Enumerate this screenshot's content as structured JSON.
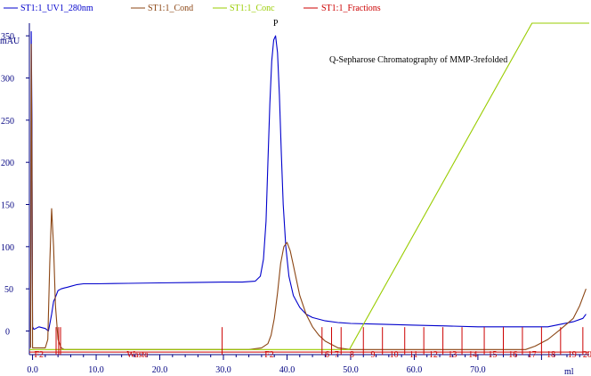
{
  "chart_data": {
    "type": "line",
    "title": "Q-Sepharose Chromatography of MMP-3refolded",
    "ylabel": "mAU",
    "xlabel": "ml",
    "xlim": [
      -0.5,
      87.5
    ],
    "ylim": [
      -28,
      365
    ],
    "x_ticks": [
      0.0,
      10.0,
      20.0,
      30.0,
      40.0,
      50.0,
      60.0,
      70.0
    ],
    "x_tick_labels": [
      "0.0",
      "10.0",
      "20.0",
      "30.0",
      "40.0",
      "50.0",
      "60.0",
      "70.0"
    ],
    "y_ticks": [
      0,
      50,
      100,
      150,
      200,
      250,
      300,
      350
    ],
    "y_tick_labels": [
      "0",
      "50",
      "100",
      "150",
      "200",
      "250",
      "300",
      "350"
    ],
    "legend": [
      {
        "name": "ST1:1_UV1_280nm",
        "color": "#0000cc"
      },
      {
        "name": "ST1:1_Cond",
        "color": "#8b4513"
      },
      {
        "name": "ST1:1_Conc",
        "color": "#99cc00"
      },
      {
        "name": "ST1:1_Fractions",
        "color": "#cc0000"
      }
    ],
    "peak_label": {
      "text": "P",
      "x": 38.2,
      "y": 362
    },
    "series": [
      {
        "name": "ST1:1_UV1_280nm",
        "color": "#0000cc",
        "x": [
          -0.3,
          -0.2,
          -0.1,
          0.0,
          0.2,
          0.5,
          1.0,
          2.0,
          2.5,
          2.8,
          3.0,
          3.3,
          3.6,
          4.0,
          4.5,
          5.0,
          5.5,
          6.0,
          7.0,
          8.0,
          10.0,
          15.0,
          20.0,
          25.0,
          30.0,
          33.0,
          35.0,
          35.8,
          36.3,
          36.7,
          37.0,
          37.3,
          37.6,
          37.9,
          38.2,
          38.5,
          38.8,
          39.1,
          39.4,
          39.8,
          40.3,
          41.0,
          42.0,
          43.0,
          44.0,
          46.0,
          48.0,
          50.0,
          55.0,
          60.0,
          65.0,
          70.0,
          75.0,
          79.0,
          81.0,
          83.0,
          85.0,
          86.5,
          87.0
        ],
        "y": [
          0,
          355,
          250,
          5,
          2,
          3,
          5,
          3,
          0,
          12,
          20,
          35,
          40,
          48,
          50,
          51,
          52,
          53,
          55,
          56,
          56,
          56.5,
          57,
          57.5,
          58,
          58,
          59,
          65,
          85,
          130,
          200,
          270,
          320,
          345,
          350,
          330,
          280,
          210,
          150,
          100,
          65,
          42,
          28,
          20,
          16,
          12,
          10,
          9,
          8,
          7,
          6,
          5,
          5,
          5,
          5,
          8,
          11,
          15,
          20
        ]
      },
      {
        "name": "ST1:1_Cond",
        "color": "#8b4513",
        "x": [
          -0.3,
          -0.2,
          -0.1,
          0.0,
          1.0,
          2.0,
          2.4,
          2.7,
          3.0,
          3.3,
          3.6,
          4.0,
          4.5,
          5.0,
          10.0,
          20.0,
          30.0,
          34.0,
          36.0,
          37.0,
          37.5,
          38.0,
          38.5,
          39.0,
          39.5,
          40.0,
          40.5,
          41.0,
          41.5,
          42.0,
          43.0,
          44.0,
          45.0,
          46.0,
          47.0,
          48.0,
          50.0,
          60.0,
          70.0,
          75.0,
          77.5,
          79.0,
          81.0,
          83.0,
          85.0,
          86.0,
          87.0
        ],
        "y": [
          -20,
          340,
          200,
          -20,
          -20,
          -20,
          -10,
          80,
          145,
          100,
          30,
          -10,
          -20,
          -22,
          -22,
          -22,
          -22,
          -22,
          -20,
          -15,
          -5,
          15,
          45,
          80,
          100,
          105,
          95,
          78,
          60,
          42,
          20,
          5,
          -5,
          -12,
          -16,
          -20,
          -22,
          -22,
          -22,
          -22,
          -22,
          -18,
          -10,
          2,
          15,
          30,
          50
        ]
      },
      {
        "name": "ST1:1_Conc",
        "color": "#99cc00",
        "x": [
          -0.5,
          49.8,
          78.5,
          87.5
        ],
        "y": [
          -22,
          -22,
          365,
          365
        ]
      }
    ],
    "fractions": [
      {
        "label": "F2",
        "pos": 1.0
      },
      {
        "label": "Waste",
        "pos": 16.5
      },
      {
        "label": "F2",
        "pos": 37.2
      },
      {
        "label": "6",
        "pos": 46.3
      },
      {
        "label": "7",
        "pos": 47.8
      },
      {
        "label": "8",
        "pos": 50.2
      },
      {
        "label": "9",
        "pos": 53.5
      },
      {
        "label": "10",
        "pos": 56.8
      },
      {
        "label": "11",
        "pos": 59.9
      },
      {
        "label": "12",
        "pos": 63.0
      },
      {
        "label": "13",
        "pos": 66.0
      },
      {
        "label": "14",
        "pos": 69.2
      },
      {
        "label": "15",
        "pos": 72.3
      },
      {
        "label": "16",
        "pos": 75.5
      },
      {
        "label": "17",
        "pos": 78.5
      },
      {
        "label": "18",
        "pos": 81.5
      },
      {
        "label": "19",
        "pos": 84.8
      },
      {
        "label": "20",
        "pos": 87.2
      }
    ],
    "fraction_marks": [
      3.7,
      4.1,
      4.4,
      29.8,
      45.5,
      47.0,
      48.5,
      52.0,
      55.0,
      58.5,
      61.5,
      64.5,
      67.5,
      71.0,
      74.0,
      77.0,
      80.0,
      83.0,
      86.5
    ],
    "fraction_baseline": -25
  }
}
